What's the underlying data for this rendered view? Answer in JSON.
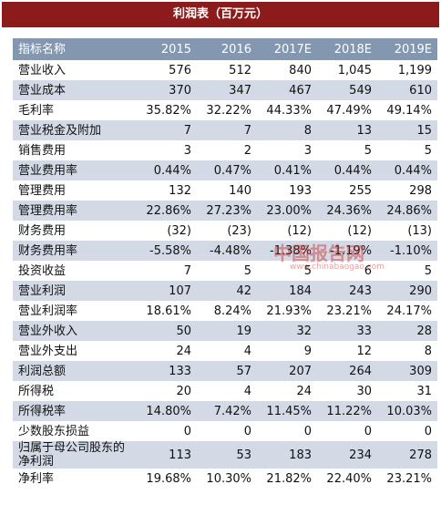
{
  "title": "利润表（百万元）",
  "table": {
    "header": [
      "指标名称",
      "2015",
      "2016",
      "2017E",
      "2018E",
      "2019E"
    ],
    "rows": [
      [
        "营业收入",
        "576",
        "512",
        "840",
        "1,045",
        "1,199"
      ],
      [
        "营业成本",
        "370",
        "347",
        "467",
        "549",
        "610"
      ],
      [
        "毛利率",
        "35.82%",
        "32.22%",
        "44.33%",
        "47.49%",
        "49.14%"
      ],
      [
        "营业税金及附加",
        "7",
        "7",
        "8",
        "13",
        "15"
      ],
      [
        "销售费用",
        "3",
        "2",
        "3",
        "5",
        "5"
      ],
      [
        "营业费用率",
        "0.44%",
        "0.47%",
        "0.41%",
        "0.44%",
        "0.44%"
      ],
      [
        "管理费用",
        "132",
        "140",
        "193",
        "255",
        "298"
      ],
      [
        "管理费用率",
        "22.86%",
        "27.23%",
        "23.00%",
        "24.36%",
        "24.86%"
      ],
      [
        "财务费用",
        "(32)",
        "(23)",
        "(12)",
        "(12)",
        "(13)"
      ],
      [
        "财务费用率",
        "-5.58%",
        "-4.48%",
        "-1.38%",
        "-1.19%",
        "-1.10%"
      ],
      [
        "投资收益",
        "7",
        "5",
        "5",
        "6",
        "5"
      ],
      [
        "营业利润",
        "107",
        "42",
        "184",
        "243",
        "290"
      ],
      [
        "营业利润率",
        "18.61%",
        "8.24%",
        "21.93%",
        "23.21%",
        "24.17%"
      ],
      [
        "营业外收入",
        "50",
        "19",
        "32",
        "33",
        "28"
      ],
      [
        "营业外支出",
        "24",
        "4",
        "9",
        "12",
        "8"
      ],
      [
        "利润总额",
        "133",
        "57",
        "207",
        "264",
        "309"
      ],
      [
        "所得税",
        "20",
        "4",
        "24",
        "30",
        "31"
      ],
      [
        "所得税率",
        "14.80%",
        "7.42%",
        "11.45%",
        "11.22%",
        "10.03%"
      ],
      [
        "少数股东损益",
        "0",
        "0",
        "0",
        "0",
        "0"
      ],
      [
        "归属于母公司股东的净利润",
        "113",
        "53",
        "183",
        "234",
        "278"
      ],
      [
        "净利率",
        "19.68%",
        "10.30%",
        "21.82%",
        "22.40%",
        "23.21%"
      ]
    ]
  },
  "watermark": {
    "brand": "中国报告网",
    "url": "www.chinabaogao.com"
  }
}
